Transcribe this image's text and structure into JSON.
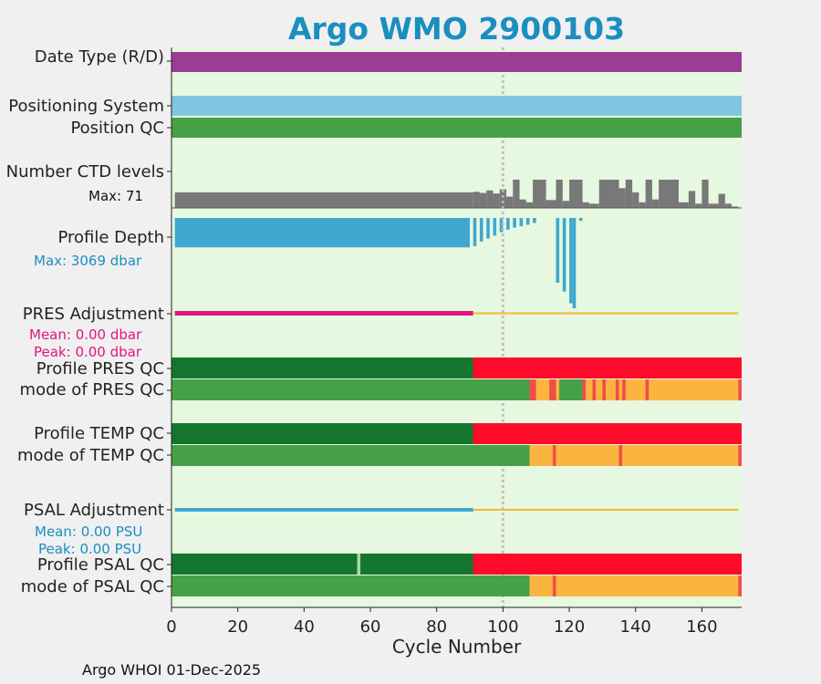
{
  "title": "Argo WMO 2900103",
  "footer": "Argo WHOI 01-Dec-2025",
  "labels": {
    "date_type": "Date Type (R/D)",
    "positioning_system": "Positioning System",
    "position_qc": "Position QC",
    "ctd_levels": "Number CTD levels",
    "ctd_max": "Max: 71",
    "profile_depth": "Profile Depth",
    "depth_max": "Max: 3069 dbar",
    "pres_adjustment": "PRES Adjustment",
    "pres_mean": "Mean: 0.00 dbar",
    "pres_peak": "Peak: 0.00 dbar",
    "profile_pres_qc": "Profile PRES QC",
    "mode_pres_qc": "mode of PRES QC",
    "profile_temp_qc": "Profile TEMP QC",
    "mode_temp_qc": "mode of TEMP QC",
    "psal_adjustment": "PSAL Adjustment",
    "psal_mean": "Mean: 0.00 PSU",
    "psal_peak": "Peak: 0.00 PSU",
    "profile_psal_qc": "Profile PSAL QC",
    "mode_psal_qc": "mode of PSAL QC"
  },
  "colors": {
    "title": "#1a8fc0",
    "background": "#e6f8e0",
    "date_type": "#9b3d96",
    "positioning": "#80c6e0",
    "good_dark": "#14752e",
    "good": "#46a046",
    "bad": "#ff0a2a",
    "probably_bad": "#fbb440",
    "red_qc": "#ef4f48",
    "ctd": "#787878",
    "depth": "#40a8d0",
    "pres_adj": "#e0157f",
    "psal_adj": "#40a8d0",
    "adj_line": "#f8b830",
    "ref_line": "#bbbbbb"
  },
  "chart_data": {
    "type": "timeline",
    "xlabel": "Cycle Number",
    "xlim": [
      0,
      172
    ],
    "xticks": [
      0,
      20,
      40,
      60,
      80,
      100,
      120,
      140,
      160
    ],
    "reference_cycle": 100,
    "total_cycles": 172,
    "ctd_levels_max": 71,
    "profile_depth_max_dbar": 3069,
    "pres_adjustment": {
      "mean": 0.0,
      "peak": 0.0,
      "unit": "dbar",
      "adjusted_until": 91
    },
    "psal_adjustment": {
      "mean": 0.0,
      "peak": 0.0,
      "unit": "PSU",
      "adjusted_until": 91
    },
    "ctd_levels": [
      {
        "cycles": [
          1,
          90
        ],
        "value": 55
      },
      {
        "cycles": [
          91,
          92
        ],
        "value": 57
      },
      {
        "cycles": [
          93,
          94
        ],
        "value": 53
      },
      {
        "cycles": [
          95,
          96
        ],
        "value": 62
      },
      {
        "cycles": [
          97,
          98
        ],
        "value": 51
      },
      {
        "cycles": [
          99,
          100
        ],
        "value": 66
      },
      {
        "cycles": [
          101,
          102
        ],
        "value": 40
      },
      {
        "cycles": [
          103,
          104
        ],
        "value": 100
      },
      {
        "cycles": [
          105,
          106
        ],
        "value": 30
      },
      {
        "cycles": [
          107,
          108
        ],
        "value": 20
      },
      {
        "cycles": [
          109,
          112
        ],
        "value": 100
      },
      {
        "cycles": [
          113,
          115
        ],
        "value": 28
      },
      {
        "cycles": [
          116,
          117
        ],
        "value": 100
      },
      {
        "cycles": [
          118,
          119
        ],
        "value": 25
      },
      {
        "cycles": [
          120,
          123
        ],
        "value": 100
      },
      {
        "cycles": [
          124,
          125
        ],
        "value": 20
      },
      {
        "cycles": [
          126,
          128
        ],
        "value": 15
      },
      {
        "cycles": [
          129,
          134
        ],
        "value": 100
      },
      {
        "cycles": [
          135,
          136
        ],
        "value": 70
      },
      {
        "cycles": [
          137,
          138
        ],
        "value": 100
      },
      {
        "cycles": [
          139,
          140
        ],
        "value": 55
      },
      {
        "cycles": [
          141,
          142
        ],
        "value": 20
      },
      {
        "cycles": [
          143,
          144
        ],
        "value": 100
      },
      {
        "cycles": [
          145,
          146
        ],
        "value": 30
      },
      {
        "cycles": [
          147,
          152
        ],
        "value": 100
      },
      {
        "cycles": [
          153,
          155
        ],
        "value": 20
      },
      {
        "cycles": [
          156,
          157
        ],
        "value": 60
      },
      {
        "cycles": [
          158,
          159
        ],
        "value": 15
      },
      {
        "cycles": [
          160,
          161
        ],
        "value": 100
      },
      {
        "cycles": [
          162,
          164
        ],
        "value": 15
      },
      {
        "cycles": [
          165,
          166
        ],
        "value": 50
      },
      {
        "cycles": [
          167,
          168
        ],
        "value": 15
      },
      {
        "cycles": [
          169,
          170
        ],
        "value": 5
      }
    ],
    "profile_depth": [
      {
        "cycles": [
          1,
          90
        ],
        "depth": 1000
      },
      {
        "cycles": [
          91,
          92
        ],
        "depth": 960
      },
      {
        "cycles": [
          93,
          94
        ],
        "depth": 800
      },
      {
        "cycles": [
          95,
          96
        ],
        "depth": 700
      },
      {
        "cycles": [
          97,
          98
        ],
        "depth": 600
      },
      {
        "cycles": [
          99,
          100
        ],
        "depth": 480
      },
      {
        "cycles": [
          101,
          102
        ],
        "depth": 400
      },
      {
        "cycles": [
          103,
          104
        ],
        "depth": 330
      },
      {
        "cycles": [
          105,
          106
        ],
        "depth": 280
      },
      {
        "cycles": [
          107,
          108
        ],
        "depth": 230
      },
      {
        "cycles": [
          109,
          110
        ],
        "depth": 170
      },
      {
        "cycles": [
          116,
          117
        ],
        "depth": 2200
      },
      {
        "cycles": [
          118,
          119
        ],
        "depth": 2500
      },
      {
        "cycles": [
          120,
          121
        ],
        "depth": 2900
      },
      {
        "cycles": [
          121,
          122
        ],
        "depth": 3069
      },
      {
        "cycles": [
          123,
          124
        ],
        "depth": 100
      }
    ],
    "qc_segments": {
      "profile_pres_qc": [
        {
          "cycles": [
            0,
            91
          ],
          "flag": "good_dark"
        },
        {
          "cycles": [
            91,
            172
          ],
          "flag": "bad"
        }
      ],
      "mode_pres_qc": [
        {
          "cycles": [
            0,
            108
          ],
          "flag": "good"
        },
        {
          "cycles": [
            108,
            110
          ],
          "flag": "red_qc"
        },
        {
          "cycles": [
            110,
            114
          ],
          "flag": "probably_bad"
        },
        {
          "cycles": [
            114,
            116
          ],
          "flag": "red_qc"
        },
        {
          "cycles": [
            116,
            117
          ],
          "flag": "probably_bad"
        },
        {
          "cycles": [
            117,
            124
          ],
          "flag": "good"
        },
        {
          "cycles": [
            124,
            125
          ],
          "flag": "red_qc"
        },
        {
          "cycles": [
            125,
            127
          ],
          "flag": "probably_bad"
        },
        {
          "cycles": [
            127,
            128
          ],
          "flag": "red_qc"
        },
        {
          "cycles": [
            128,
            130
          ],
          "flag": "probably_bad"
        },
        {
          "cycles": [
            130,
            131
          ],
          "flag": "red_qc"
        },
        {
          "cycles": [
            131,
            134
          ],
          "flag": "probably_bad"
        },
        {
          "cycles": [
            134,
            135
          ],
          "flag": "red_qc"
        },
        {
          "cycles": [
            135,
            136
          ],
          "flag": "probably_bad"
        },
        {
          "cycles": [
            136,
            137
          ],
          "flag": "red_qc"
        },
        {
          "cycles": [
            137,
            143
          ],
          "flag": "probably_bad"
        },
        {
          "cycles": [
            143,
            144
          ],
          "flag": "red_qc"
        },
        {
          "cycles": [
            144,
            171
          ],
          "flag": "probably_bad"
        },
        {
          "cycles": [
            171,
            172
          ],
          "flag": "red_qc"
        }
      ],
      "profile_temp_qc": [
        {
          "cycles": [
            0,
            91
          ],
          "flag": "good_dark"
        },
        {
          "cycles": [
            91,
            172
          ],
          "flag": "bad"
        }
      ],
      "mode_temp_qc": [
        {
          "cycles": [
            0,
            108
          ],
          "flag": "good"
        },
        {
          "cycles": [
            108,
            115
          ],
          "flag": "probably_bad"
        },
        {
          "cycles": [
            115,
            116
          ],
          "flag": "red_qc"
        },
        {
          "cycles": [
            116,
            135
          ],
          "flag": "probably_bad"
        },
        {
          "cycles": [
            135,
            136
          ],
          "flag": "red_qc"
        },
        {
          "cycles": [
            136,
            171
          ],
          "flag": "probably_bad"
        },
        {
          "cycles": [
            171,
            172
          ],
          "flag": "red_qc"
        }
      ],
      "profile_psal_qc": [
        {
          "cycles": [
            0,
            56
          ],
          "flag": "good_dark"
        },
        {
          "cycles": [
            56,
            57
          ],
          "flag": "good_light"
        },
        {
          "cycles": [
            57,
            91
          ],
          "flag": "good_dark"
        },
        {
          "cycles": [
            91,
            172
          ],
          "flag": "bad"
        }
      ],
      "mode_psal_qc": [
        {
          "cycles": [
            0,
            108
          ],
          "flag": "good"
        },
        {
          "cycles": [
            108,
            115
          ],
          "flag": "probably_bad"
        },
        {
          "cycles": [
            115,
            116
          ],
          "flag": "red_qc"
        },
        {
          "cycles": [
            116,
            171
          ],
          "flag": "probably_bad"
        },
        {
          "cycles": [
            171,
            172
          ],
          "flag": "red_qc"
        }
      ]
    }
  }
}
